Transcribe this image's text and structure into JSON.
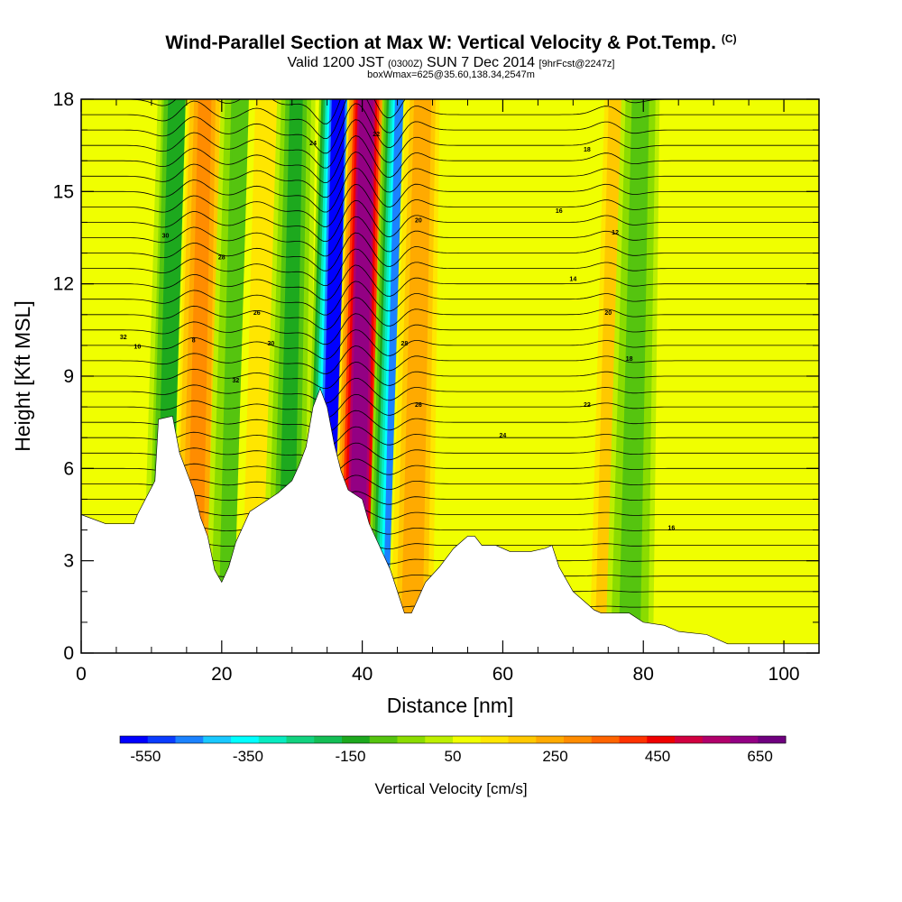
{
  "header": {
    "title": "Wind-Parallel Section at Max W: Vertical Velocity & Pot.Temp.",
    "copyright": "(C)",
    "valid_prefix": "Valid 1200 JST",
    "valid_utc": "(0300Z)",
    "valid_date": "SUN 7 Dec 2014",
    "forecast": "[9hrFcst@2247z]",
    "box_info": "boxWmax=625@35.60,138.34,2547m"
  },
  "chart_data": {
    "type": "heatmap",
    "xlabel": "Distance [nm]",
    "ylabel": "Height [Kft MSL]",
    "xlim": [
      0,
      105
    ],
    "ylim": [
      0,
      18
    ],
    "x_ticks": [
      0,
      20,
      40,
      60,
      80,
      100
    ],
    "y_ticks": [
      0,
      3,
      6,
      9,
      12,
      15,
      18
    ],
    "terrain_kft": [
      [
        0,
        4.5
      ],
      [
        3.5,
        4.2
      ],
      [
        7.5,
        4.2
      ],
      [
        8,
        4.5
      ],
      [
        10.5,
        5.6
      ],
      [
        11,
        7.6
      ],
      [
        13,
        7.7
      ],
      [
        14,
        6.5
      ],
      [
        16,
        5.3
      ],
      [
        17,
        4.4
      ],
      [
        18,
        3.8
      ],
      [
        19,
        2.7
      ],
      [
        20,
        2.3
      ],
      [
        21,
        2.8
      ],
      [
        22,
        3.6
      ],
      [
        23,
        4.1
      ],
      [
        24,
        4.6
      ],
      [
        26,
        4.9
      ],
      [
        28,
        5.2
      ],
      [
        30,
        5.6
      ],
      [
        31,
        6.1
      ],
      [
        32,
        6.7
      ],
      [
        33,
        8.0
      ],
      [
        34,
        8.6
      ],
      [
        35,
        8.0
      ],
      [
        36,
        6.8
      ],
      [
        37,
        5.9
      ],
      [
        38,
        5.3
      ],
      [
        40,
        5.0
      ],
      [
        41,
        4.2
      ],
      [
        43,
        3.2
      ],
      [
        44,
        2.7
      ],
      [
        45,
        2.0
      ],
      [
        46,
        1.3
      ],
      [
        47,
        1.3
      ],
      [
        49,
        2.3
      ],
      [
        51,
        2.8
      ],
      [
        53,
        3.4
      ],
      [
        55,
        3.8
      ],
      [
        56,
        3.8
      ],
      [
        57,
        3.5
      ],
      [
        59,
        3.5
      ],
      [
        61,
        3.3
      ],
      [
        64,
        3.3
      ],
      [
        66,
        3.4
      ],
      [
        67,
        3.5
      ],
      [
        68,
        2.8
      ],
      [
        69,
        2.4
      ],
      [
        70,
        2.0
      ],
      [
        72,
        1.6
      ],
      [
        73,
        1.4
      ],
      [
        74,
        1.3
      ],
      [
        78,
        1.3
      ],
      [
        80,
        1.0
      ],
      [
        83,
        0.9
      ],
      [
        85,
        0.7
      ],
      [
        89,
        0.6
      ],
      [
        92,
        0.3
      ],
      [
        105,
        0.3
      ]
    ],
    "vertical_velocity_features": [
      {
        "x_center": 12,
        "w_cm_s": -150
      },
      {
        "x_center": 16,
        "w_cm_s": 300
      },
      {
        "x_center": 21,
        "w_cm_s": -100
      },
      {
        "x_center": 25,
        "w_cm_s": 150
      },
      {
        "x_center": 29,
        "w_cm_s": -120
      },
      {
        "x_center": 35,
        "w_cm_s": -550
      },
      {
        "x_center": 39,
        "w_cm_s": 625
      },
      {
        "x_center": 44,
        "w_cm_s": -450
      },
      {
        "x_center": 47,
        "w_cm_s": 250
      },
      {
        "x_center": 75,
        "w_cm_s": 200
      },
      {
        "x_center": 78,
        "w_cm_s": -100
      }
    ],
    "max_w_cm_s": 625,
    "colorbar": {
      "title": "Vertical Velocity [cm/s]",
      "tick_labels": [
        "-550",
        "-350",
        "-150",
        "50",
        "250",
        "450",
        "650"
      ],
      "min": -600,
      "max": 700,
      "colors": [
        "#0000ff",
        "#0a3cff",
        "#1b82ff",
        "#19c8ff",
        "#00ffff",
        "#08ebc0",
        "#12d27f",
        "#14be55",
        "#1da91e",
        "#55c40f",
        "#8bdc00",
        "#bdef00",
        "#f0ff00",
        "#ffe600",
        "#ffc800",
        "#ffaa00",
        "#ff8c00",
        "#ff6400",
        "#ff3200",
        "#ef0000",
        "#d10040",
        "#b1006b",
        "#930083",
        "#6f007f"
      ]
    },
    "contour_labels": [
      "32",
      "30",
      "28",
      "26",
      "24",
      "22",
      "20",
      "18",
      "16",
      "14",
      "12",
      "10",
      "8"
    ]
  }
}
